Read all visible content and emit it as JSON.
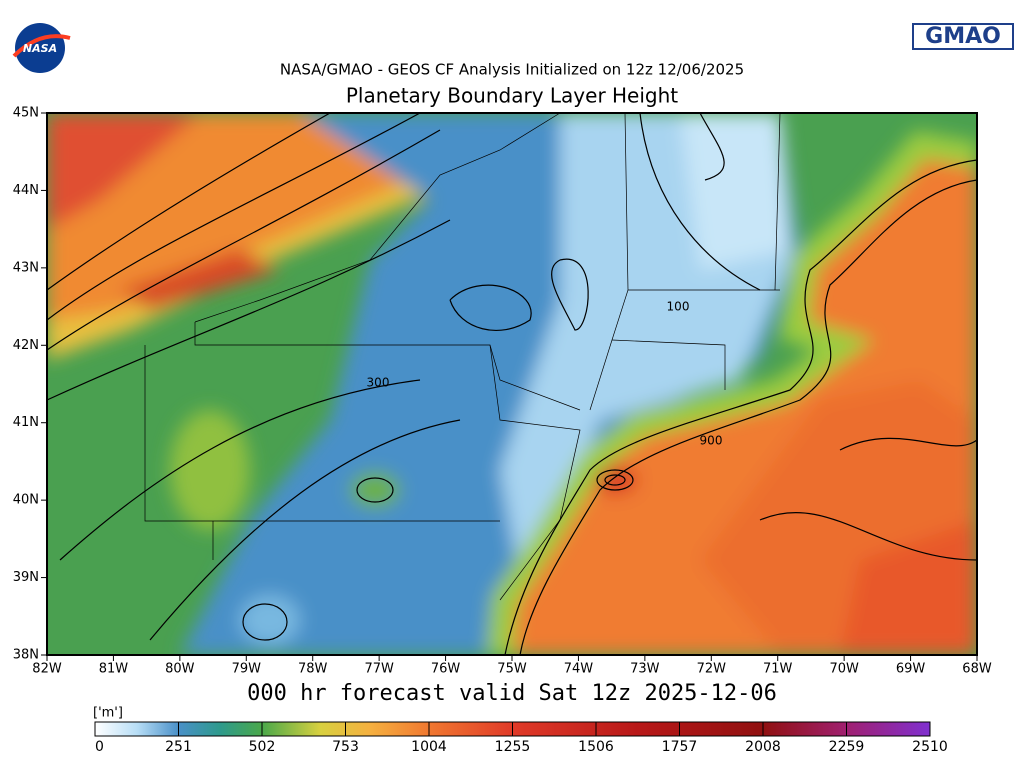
{
  "header": {
    "logo_left": "NASA",
    "logo_right": "GMAO",
    "subtitle": "NASA/GMAO - GEOS CF Analysis Initialized on 12z 12/06/2025",
    "title": "Planetary Boundary Layer Height"
  },
  "map": {
    "lat_labels": [
      "45N",
      "44N",
      "43N",
      "42N",
      "41N",
      "40N",
      "39N",
      "38N"
    ],
    "lon_labels": [
      "82W",
      "81W",
      "80W",
      "79W",
      "78W",
      "77W",
      "76W",
      "75W",
      "74W",
      "73W",
      "72W",
      "71W",
      "70W",
      "69W",
      "68W"
    ],
    "contour_labels": [
      "100",
      "300",
      "900"
    ]
  },
  "footer": {
    "valid": "000 hr forecast valid Sat 12z 2025-12-06"
  },
  "colorbar": {
    "unit": "['m']",
    "labels": [
      "0",
      "251",
      "502",
      "753",
      "1004",
      "1255",
      "1506",
      "1757",
      "2008",
      "2259",
      "2510"
    ]
  }
}
